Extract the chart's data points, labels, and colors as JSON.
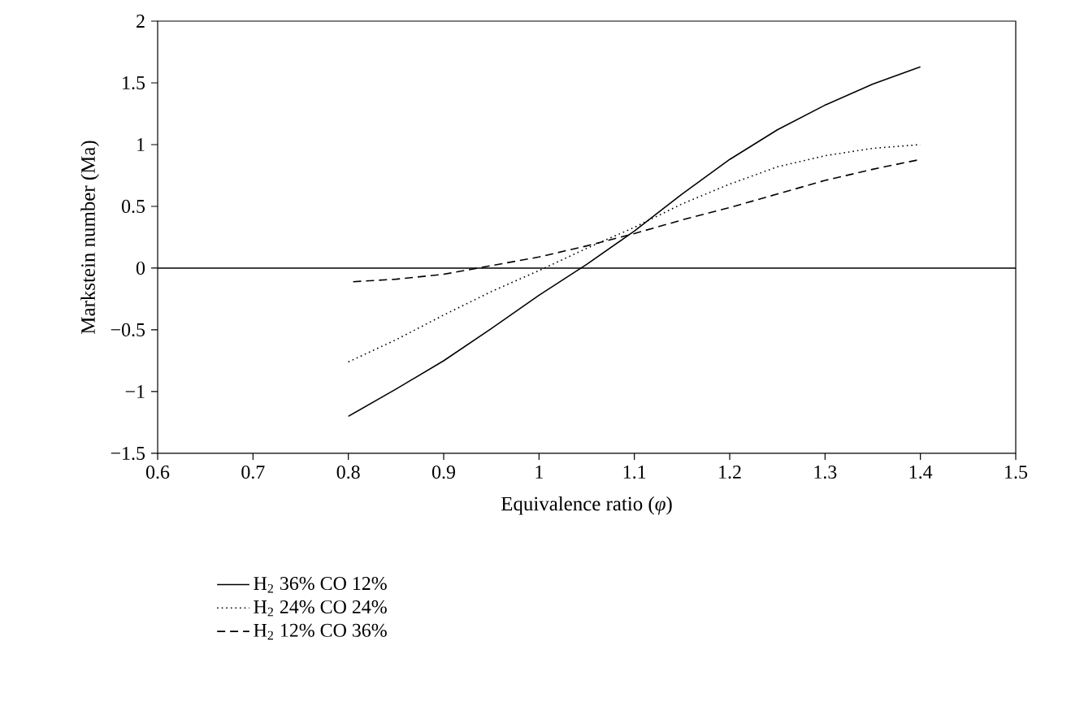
{
  "chart_data": {
    "type": "line",
    "xlabel": "Equivalence ratio (*φ*)",
    "ylabel": "Markstein number (Ma)",
    "xlim": [
      0.6,
      1.5
    ],
    "ylim": [
      -1.5,
      2
    ],
    "xticks": [
      0.6,
      0.7,
      0.8,
      0.9,
      1,
      1.1,
      1.2,
      1.3,
      1.4,
      1.5
    ],
    "yticks": [
      {
        "value": -1.5,
        "label": "−1.5"
      },
      {
        "value": -1,
        "label": "−1"
      },
      {
        "value": -0.5,
        "label": "−0.5"
      },
      0,
      0.5,
      1,
      1.5,
      2
    ],
    "ref_lines": [
      {
        "axis": "y",
        "value": 0,
        "color": "#000000"
      }
    ],
    "legend": "bottom left",
    "marker": "none",
    "series": [
      {
        "name": "H$_{2}$ 36% CO 12%",
        "color": "#000000",
        "line_style": "solid",
        "x": [
          0.8,
          0.85,
          0.9,
          0.95,
          1.0,
          1.05,
          1.1,
          1.15,
          1.2,
          1.25,
          1.3,
          1.35,
          1.4
        ],
        "values": [
          -1.2,
          -0.98,
          -0.75,
          -0.49,
          -0.22,
          0.03,
          0.3,
          0.6,
          0.88,
          1.12,
          1.32,
          1.49,
          1.63
        ]
      },
      {
        "name": "H$_{2}$ 24% CO 24%",
        "color": "#000000",
        "line_style": "dotted",
        "x": [
          0.8,
          0.85,
          0.9,
          0.95,
          1.0,
          1.05,
          1.1,
          1.15,
          1.2,
          1.25,
          1.3,
          1.35,
          1.4
        ],
        "values": [
          -0.76,
          -0.58,
          -0.38,
          -0.19,
          -0.02,
          0.16,
          0.33,
          0.52,
          0.68,
          0.82,
          0.91,
          0.97,
          1.0
        ]
      },
      {
        "name": "H$_{2}$ 12% CO 36%",
        "color": "#000000",
        "line_style": "dashed",
        "x": [
          0.805,
          0.85,
          0.9,
          0.95,
          1.0,
          1.05,
          1.1,
          1.15,
          1.2,
          1.25,
          1.3,
          1.35,
          1.4
        ],
        "values": [
          -0.11,
          -0.09,
          -0.05,
          0.02,
          0.09,
          0.18,
          0.28,
          0.39,
          0.49,
          0.6,
          0.71,
          0.8,
          0.88
        ]
      }
    ]
  }
}
